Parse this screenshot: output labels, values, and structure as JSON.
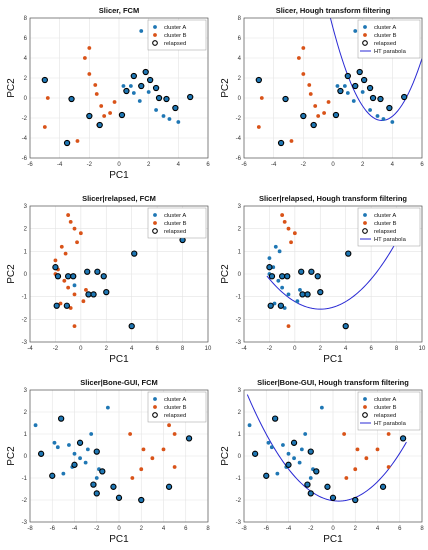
{
  "figure": {
    "colors": {
      "cluster_a": "#1f77b4",
      "cluster_b": "#d95319",
      "relapsed_ring": "#000000",
      "parabola": "#2a2ad4",
      "grid": "#e3e3e3",
      "axis": "#555555"
    }
  },
  "chart_data": [
    {
      "type": "scatter",
      "title": "Slicer, FCM",
      "xlabel": "PC1",
      "ylabel": "PC2",
      "xlim": [
        -6,
        6
      ],
      "ylim": [
        -6,
        8
      ],
      "xticks": [
        -6,
        -4,
        -2,
        0,
        2,
        4,
        6
      ],
      "yticks": [
        -6,
        -4,
        -2,
        0,
        2,
        4,
        6,
        8
      ],
      "grid": true,
      "legend_position": "top-right",
      "legend": [
        "cluster A",
        "cluster B",
        "relapsed"
      ],
      "parabola": null,
      "series": [
        {
          "name": "cluster A",
          "points": [
            [
              0.3,
              1.2
            ],
            [
              0.8,
              1.2
            ],
            [
              1.0,
              0.5
            ],
            [
              1.4,
              -0.3
            ],
            [
              2.0,
              0.6
            ],
            [
              2.5,
              -1.2
            ],
            [
              3.0,
              -1.8
            ],
            [
              3.4,
              -2.1
            ],
            [
              4.0,
              -2.4
            ],
            [
              1.5,
              6.7
            ]
          ]
        },
        {
          "name": "cluster B",
          "points": [
            [
              -4.8,
              0.0
            ],
            [
              -5.0,
              -2.9
            ],
            [
              -3.2,
              -0.1
            ],
            [
              -2.3,
              4.0
            ],
            [
              -2.0,
              5.0
            ],
            [
              -2.0,
              2.4
            ],
            [
              -1.6,
              1.3
            ],
            [
              -1.5,
              0.4
            ],
            [
              -1.2,
              -0.8
            ],
            [
              -1.0,
              -1.8
            ],
            [
              -1.4,
              -2.7
            ],
            [
              -0.6,
              -1.5
            ],
            [
              -0.3,
              -0.4
            ],
            [
              -2.8,
              -4.3
            ]
          ]
        }
      ],
      "relapsed": [
        [
          -5.0,
          1.8
        ],
        [
          -3.5,
          -4.5
        ],
        [
          -3.2,
          -0.1
        ],
        [
          -2.0,
          -1.8
        ],
        [
          -1.3,
          -2.7
        ],
        [
          0.2,
          -1.7
        ],
        [
          0.5,
          0.7
        ],
        [
          1.0,
          2.2
        ],
        [
          1.5,
          1.2
        ],
        [
          1.8,
          2.6
        ],
        [
          2.1,
          1.8
        ],
        [
          2.5,
          1.0
        ],
        [
          2.7,
          0.0
        ],
        [
          3.2,
          -0.1
        ],
        [
          3.8,
          -1.0
        ],
        [
          4.8,
          0.1
        ]
      ]
    },
    {
      "type": "scatter",
      "title": "Slicer, Hough transform filtering",
      "xlabel": "",
      "ylabel": "PC2",
      "xlim": [
        -6,
        6
      ],
      "ylim": [
        -6,
        8
      ],
      "xticks": [
        -6,
        -4,
        -2,
        0,
        2,
        4,
        6
      ],
      "yticks": [
        -6,
        -4,
        -2,
        0,
        2,
        4,
        6,
        8
      ],
      "grid": true,
      "legend_position": "top-right",
      "legend": [
        "cluster A",
        "cluster B",
        "relapsed",
        "HT parabola"
      ],
      "parabola": {
        "vertex": [
          3.3,
          -2.25
        ],
        "coef": 0.85,
        "x_range": [
          -6,
          6
        ]
      },
      "series": [
        {
          "name": "cluster A",
          "points": [
            [
              0.3,
              1.2
            ],
            [
              0.8,
              1.2
            ],
            [
              1.0,
              0.5
            ],
            [
              1.4,
              -0.3
            ],
            [
              2.0,
              0.6
            ],
            [
              2.5,
              -1.2
            ],
            [
              3.0,
              -1.8
            ],
            [
              3.4,
              -2.1
            ],
            [
              4.0,
              -2.4
            ],
            [
              1.5,
              6.7
            ]
          ]
        },
        {
          "name": "cluster B",
          "points": [
            [
              -4.8,
              0.0
            ],
            [
              -5.0,
              -2.9
            ],
            [
              -3.2,
              -0.1
            ],
            [
              -2.3,
              4.0
            ],
            [
              -2.0,
              5.0
            ],
            [
              -2.0,
              2.4
            ],
            [
              -1.6,
              1.3
            ],
            [
              -1.5,
              0.4
            ],
            [
              -1.2,
              -0.8
            ],
            [
              -1.0,
              -1.8
            ],
            [
              -1.4,
              -2.7
            ],
            [
              -0.6,
              -1.5
            ],
            [
              -0.3,
              -0.4
            ],
            [
              -2.8,
              -4.3
            ]
          ]
        }
      ],
      "relapsed": [
        [
          -5.0,
          1.8
        ],
        [
          -3.5,
          -4.5
        ],
        [
          -3.2,
          -0.1
        ],
        [
          -2.0,
          -1.8
        ],
        [
          -1.3,
          -2.7
        ],
        [
          0.2,
          -1.7
        ],
        [
          0.5,
          0.7
        ],
        [
          1.0,
          2.2
        ],
        [
          1.5,
          1.2
        ],
        [
          1.8,
          2.6
        ],
        [
          2.1,
          1.8
        ],
        [
          2.5,
          1.0
        ],
        [
          2.7,
          0.0
        ],
        [
          3.2,
          -0.1
        ],
        [
          3.8,
          -1.0
        ],
        [
          4.8,
          0.1
        ]
      ]
    },
    {
      "type": "scatter",
      "title": "Slicer|relapsed, FCM",
      "xlabel": "PC1",
      "ylabel": "PC2",
      "xlim": [
        -4,
        10
      ],
      "ylim": [
        -3,
        3
      ],
      "xticks": [
        -4,
        -2,
        0,
        2,
        4,
        6,
        8,
        10
      ],
      "yticks": [
        -3,
        -2,
        -1,
        0,
        1,
        2,
        3
      ],
      "grid": true,
      "legend_position": "top-right",
      "legend": [
        "cluster A",
        "cluster B",
        "relapsed"
      ],
      "parabola": null,
      "series": [
        {
          "name": "cluster A",
          "points": [
            [
              -0.5,
              -0.5
            ]
          ]
        },
        {
          "name": "cluster B",
          "points": [
            [
              -1.0,
              2.6
            ],
            [
              -0.8,
              2.3
            ],
            [
              -0.5,
              2.0
            ],
            [
              0.0,
              1.8
            ],
            [
              -0.3,
              1.4
            ],
            [
              -1.5,
              1.2
            ],
            [
              -1.2,
              0.9
            ],
            [
              -2.0,
              0.6
            ],
            [
              -1.8,
              0.2
            ],
            [
              -1.3,
              -0.3
            ],
            [
              -1.0,
              -0.6
            ],
            [
              -0.5,
              -0.9
            ],
            [
              -1.6,
              -1.3
            ],
            [
              -0.8,
              -1.5
            ],
            [
              -0.5,
              -2.3
            ],
            [
              0.4,
              -0.7
            ],
            [
              0.2,
              -1.2
            ],
            [
              -2.0,
              0.0
            ]
          ]
        }
      ],
      "relapsed": [
        [
          -2.0,
          0.3
        ],
        [
          -1.8,
          -0.1
        ],
        [
          -1.0,
          -0.1
        ],
        [
          -0.6,
          -0.1
        ],
        [
          1.3,
          0.1
        ],
        [
          1.8,
          -0.1
        ],
        [
          0.6,
          -0.9
        ],
        [
          1.0,
          -0.9
        ],
        [
          2.0,
          -0.8
        ],
        [
          0.5,
          0.1
        ],
        [
          -1.9,
          -1.4
        ],
        [
          -1.1,
          -1.4
        ],
        [
          4.2,
          0.9
        ],
        [
          4.0,
          -2.3
        ],
        [
          8.0,
          1.5
        ]
      ]
    },
    {
      "type": "scatter",
      "title": "Slicer|relapsed, Hough transform filtering",
      "xlabel": "PC1",
      "ylabel": "PC2",
      "xlim": [
        -4,
        10
      ],
      "ylim": [
        -3,
        3
      ],
      "xticks": [
        -4,
        -2,
        0,
        2,
        4,
        6,
        8,
        10
      ],
      "yticks": [
        -3,
        -2,
        -1,
        0,
        1,
        2,
        3
      ],
      "grid": true,
      "legend_position": "top-right",
      "legend": [
        "cluster A",
        "cluster B",
        "relapsed",
        "HT parabola"
      ],
      "parabola": {
        "vertex": [
          2.0,
          -1.55
        ],
        "coef": 0.083,
        "x_range": [
          -2.2,
          8.0
        ]
      },
      "series": [
        {
          "name": "cluster A",
          "points": [
            [
              -1.5,
              1.2
            ],
            [
              -1.2,
              1.0
            ],
            [
              -2.0,
              0.7
            ],
            [
              -1.7,
              0.3
            ],
            [
              -1.3,
              -0.3
            ],
            [
              -1.0,
              -0.6
            ],
            [
              -0.5,
              -0.9
            ],
            [
              -1.6,
              -1.3
            ],
            [
              -0.8,
              -1.5
            ],
            [
              0.4,
              -0.7
            ],
            [
              0.2,
              -1.2
            ],
            [
              -2.0,
              0.0
            ]
          ]
        },
        {
          "name": "cluster B",
          "points": [
            [
              -1.0,
              2.6
            ],
            [
              -0.8,
              2.3
            ],
            [
              -0.5,
              2.0
            ],
            [
              0.0,
              1.8
            ],
            [
              -0.3,
              1.4
            ],
            [
              -0.5,
              -2.3
            ]
          ]
        }
      ],
      "relapsed": [
        [
          -2.0,
          0.3
        ],
        [
          -1.8,
          -0.1
        ],
        [
          -1.0,
          -0.1
        ],
        [
          -0.6,
          -0.1
        ],
        [
          1.3,
          0.1
        ],
        [
          1.8,
          -0.1
        ],
        [
          0.6,
          -0.9
        ],
        [
          1.0,
          -0.9
        ],
        [
          2.0,
          -0.8
        ],
        [
          0.5,
          0.1
        ],
        [
          -1.9,
          -1.4
        ],
        [
          -1.1,
          -1.4
        ],
        [
          4.2,
          0.9
        ],
        [
          4.0,
          -2.3
        ],
        [
          8.0,
          1.5
        ]
      ]
    },
    {
      "type": "scatter",
      "title": "Slicer|Bone-GUI, FCM",
      "xlabel": "PC1",
      "ylabel": "PC2",
      "xlim": [
        -8,
        8
      ],
      "ylim": [
        -3,
        3
      ],
      "xticks": [
        -8,
        -6,
        -4,
        -2,
        0,
        2,
        4,
        6,
        8
      ],
      "yticks": [
        -3,
        -2,
        -1,
        0,
        1,
        2,
        3
      ],
      "grid": true,
      "legend_position": "top-right",
      "legend": [
        "cluster A",
        "cluster B",
        "relapsed"
      ],
      "parabola": null,
      "series": [
        {
          "name": "cluster A",
          "points": [
            [
              -7.5,
              1.4
            ],
            [
              -5.8,
              0.6
            ],
            [
              -5.5,
              0.4
            ],
            [
              -4.5,
              0.5
            ],
            [
              -4.0,
              0.1
            ],
            [
              -3.5,
              -0.1
            ],
            [
              -3.0,
              -0.3
            ],
            [
              -4.2,
              -0.5
            ],
            [
              -2.8,
              0.3
            ],
            [
              -2.5,
              1.0
            ],
            [
              -2.0,
              -1.0
            ],
            [
              -1.8,
              -0.6
            ],
            [
              -1.0,
              2.2
            ],
            [
              -5.0,
              -0.8
            ]
          ]
        },
        {
          "name": "cluster B",
          "points": [
            [
              1.0,
              1.0
            ],
            [
              2.2,
              0.3
            ],
            [
              3.0,
              -0.1
            ],
            [
              4.0,
              0.3
            ],
            [
              4.5,
              1.4
            ],
            [
              5.0,
              1.0
            ],
            [
              5.8,
              1.9
            ],
            [
              5.0,
              -0.5
            ],
            [
              1.2,
              -1.0
            ],
            [
              2.0,
              -0.6
            ]
          ]
        }
      ],
      "relapsed": [
        [
          -7.0,
          0.1
        ],
        [
          -6.0,
          -0.9
        ],
        [
          -5.2,
          1.7
        ],
        [
          -4.0,
          -0.4
        ],
        [
          -3.5,
          0.6
        ],
        [
          -2.3,
          -1.3
        ],
        [
          -2.0,
          -1.7
        ],
        [
          -1.5,
          -0.7
        ],
        [
          -2.0,
          0.2
        ],
        [
          -0.5,
          -1.4
        ],
        [
          0.0,
          -1.9
        ],
        [
          2.0,
          -2.0
        ],
        [
          4.5,
          -1.4
        ],
        [
          6.3,
          0.8
        ]
      ]
    },
    {
      "type": "scatter",
      "title": "Slicer|Bone-GUI, Hough transform filtering",
      "xlabel": "PC1",
      "ylabel": "PC2",
      "xlim": [
        -8,
        8
      ],
      "ylim": [
        -3,
        3
      ],
      "xticks": [
        -8,
        -6,
        -4,
        -2,
        0,
        2,
        4,
        6,
        8
      ],
      "yticks": [
        -3,
        -2,
        -1,
        0,
        1,
        2,
        3
      ],
      "grid": true,
      "legend_position": "top-right",
      "legend": [
        "cluster A",
        "cluster B",
        "relapsed",
        "HT parabola"
      ],
      "parabola": {
        "vertex": [
          0.5,
          -2.05
        ],
        "coef": 0.072,
        "x_range": [
          -7.7,
          6.6
        ]
      },
      "series": [
        {
          "name": "cluster A",
          "points": [
            [
              -7.5,
              1.4
            ],
            [
              -5.8,
              0.6
            ],
            [
              -5.5,
              0.4
            ],
            [
              -4.5,
              0.5
            ],
            [
              -4.0,
              0.1
            ],
            [
              -3.5,
              -0.1
            ],
            [
              -3.0,
              -0.3
            ],
            [
              -4.2,
              -0.5
            ],
            [
              -2.8,
              0.3
            ],
            [
              -2.5,
              1.0
            ],
            [
              -2.0,
              -1.0
            ],
            [
              -1.8,
              -0.6
            ],
            [
              -1.0,
              2.2
            ],
            [
              -5.0,
              -0.8
            ]
          ]
        },
        {
          "name": "cluster B",
          "points": [
            [
              1.0,
              1.0
            ],
            [
              2.2,
              0.3
            ],
            [
              3.0,
              -0.1
            ],
            [
              4.0,
              0.3
            ],
            [
              4.5,
              1.4
            ],
            [
              5.0,
              1.0
            ],
            [
              5.8,
              1.9
            ],
            [
              5.0,
              -0.5
            ],
            [
              1.2,
              -1.0
            ],
            [
              2.0,
              -0.6
            ]
          ]
        }
      ],
      "relapsed": [
        [
          -7.0,
          0.1
        ],
        [
          -6.0,
          -0.9
        ],
        [
          -5.2,
          1.7
        ],
        [
          -4.0,
          -0.4
        ],
        [
          -3.5,
          0.6
        ],
        [
          -2.3,
          -1.3
        ],
        [
          -2.0,
          -1.7
        ],
        [
          -1.5,
          -0.7
        ],
        [
          -2.0,
          0.2
        ],
        [
          -0.5,
          -1.4
        ],
        [
          0.0,
          -1.9
        ],
        [
          2.0,
          -2.0
        ],
        [
          4.5,
          -1.4
        ],
        [
          6.3,
          0.8
        ]
      ]
    }
  ]
}
